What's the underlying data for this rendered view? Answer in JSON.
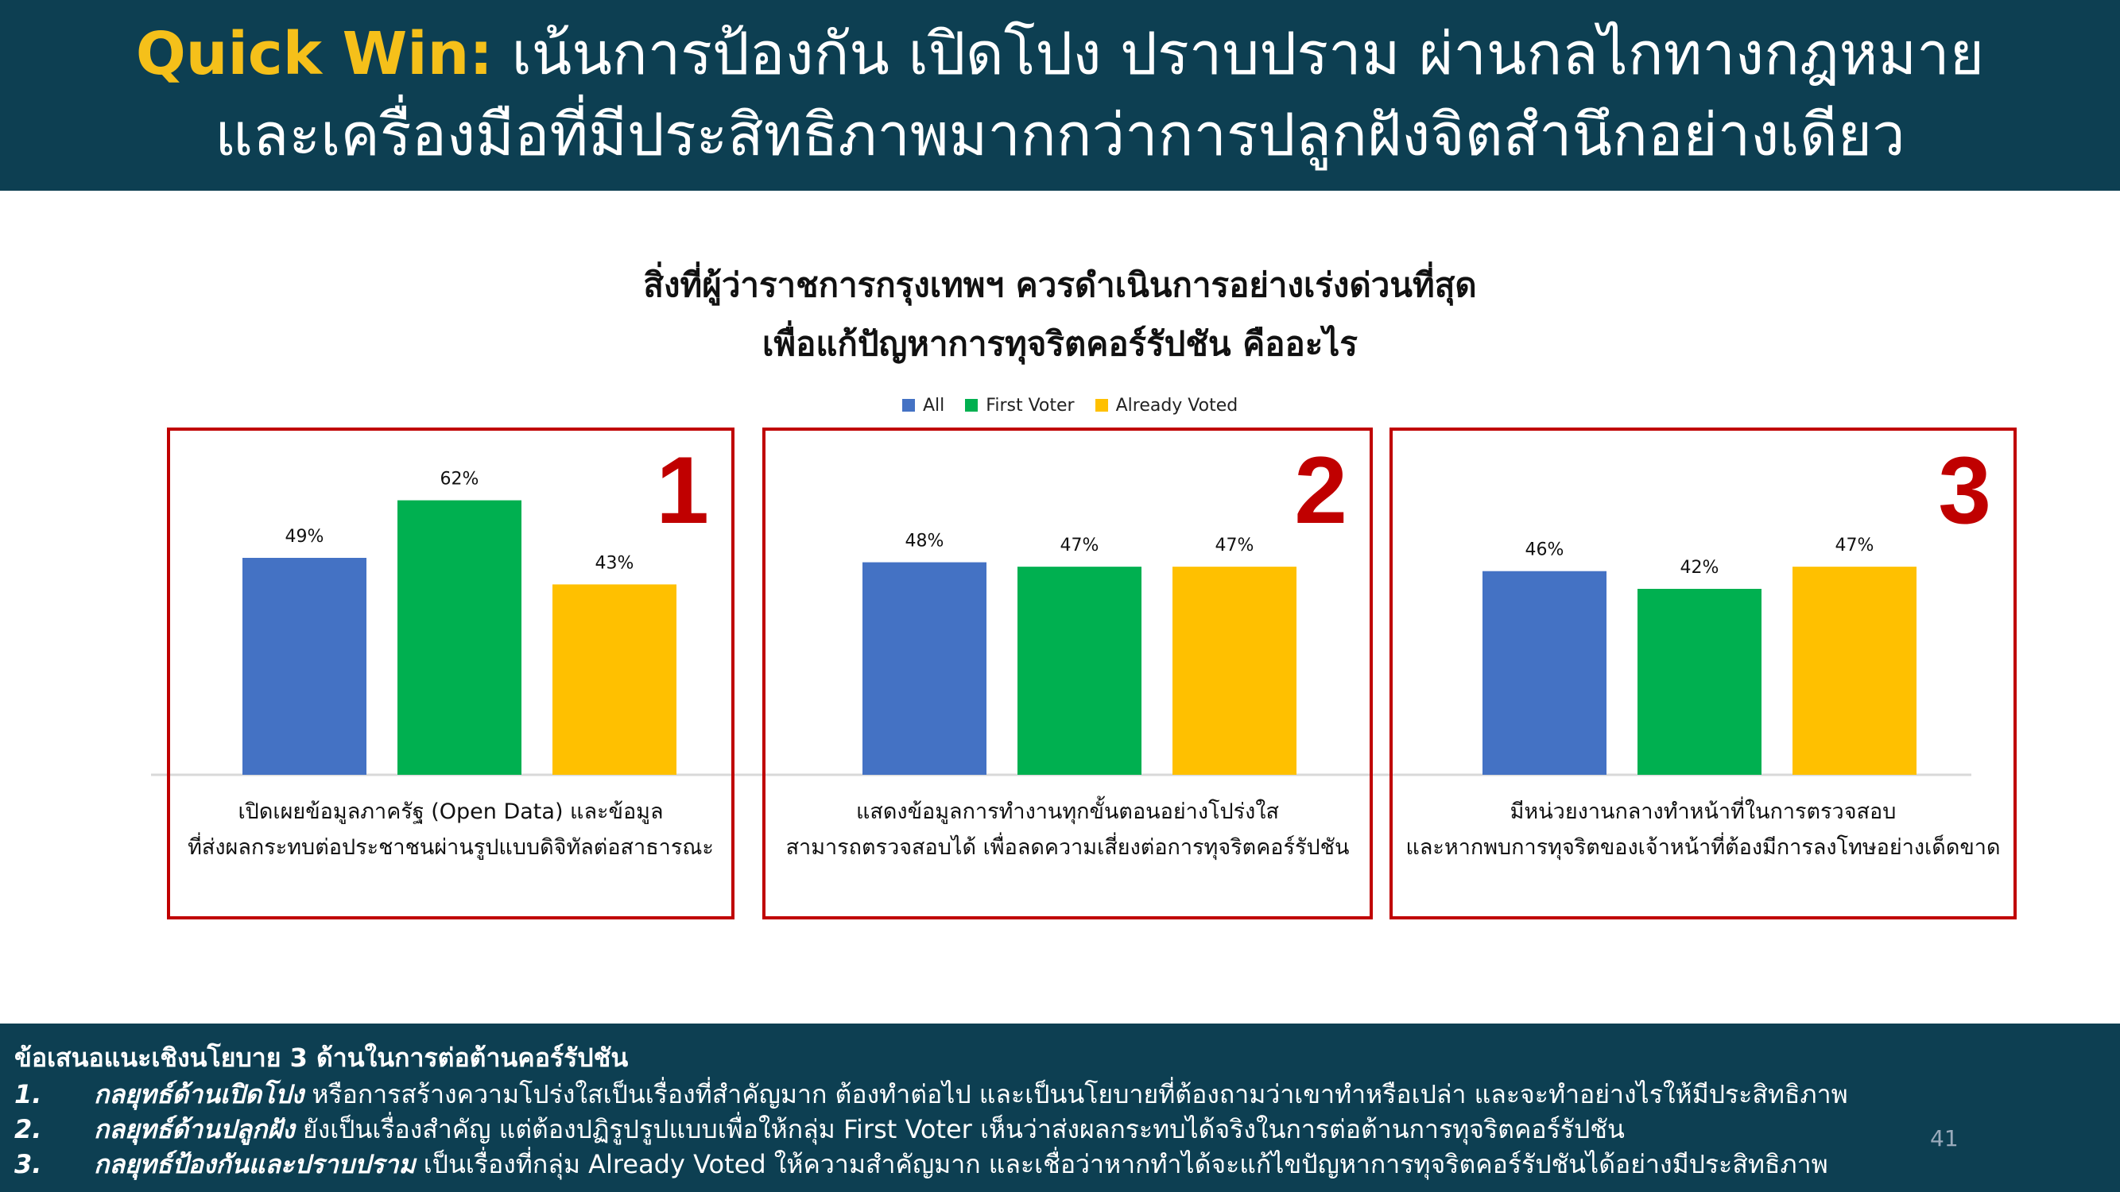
{
  "header": {
    "accent": "Quick Win:",
    "line1_rest": " เน้นการป้องกัน เปิดโปง ปราบปราม ผ่านกลไกทางกฎหมาย",
    "line2": "และเครื่องมือที่มีประสิทธิภาพมากกว่าการปลูกฝังจิตสำนึกอย่างเดียว"
  },
  "chart_data": {
    "type": "bar",
    "title_line1": "สิ่งที่ผู้ว่าราชการกรุงเทพฯ ควรดำเนินการอย่างเร่งด่วนที่สุด",
    "title_line2": "เพื่อแก้ปัญหาการทุจริตคอร์รัปชัน คืออะไร",
    "legend": [
      {
        "name": "All",
        "color": "#4472c4"
      },
      {
        "name": "First Voter",
        "color": "#00b050"
      },
      {
        "name": "Already Voted",
        "color": "#ffc000"
      }
    ],
    "legend_position": "top-center",
    "ylim": [
      0,
      70
    ],
    "grid": false,
    "value_format": "percent",
    "groups": [
      {
        "rank": "1",
        "label_line1": "เปิดเผยข้อมูลภาครัฐ (Open Data) และข้อมูล",
        "label_line2": "ที่ส่งผลกระทบต่อประชาชนผ่านรูปแบบดิจิทัลต่อสาธารณะ",
        "values": [
          49,
          62,
          43
        ]
      },
      {
        "rank": "2",
        "label_line1": "แสดงข้อมูลการทำงานทุกขั้นตอนอย่างโปร่งใส",
        "label_line2": "สามารถตรวจสอบได้ เพื่อลดความเสี่ยงต่อการทุจริตคอร์รัปชัน",
        "values": [
          48,
          47,
          47
        ]
      },
      {
        "rank": "3",
        "label_line1": "มีหน่วยงานกลางทำหน้าที่ในการตรวจสอบ",
        "label_line2": "และหากพบการทุจริตของเจ้าหน้าที่ต้องมีการลงโทษอย่างเด็ดขาด",
        "values": [
          46,
          42,
          47
        ]
      }
    ]
  },
  "footer": {
    "heading": "ข้อเสนอแนะเชิงนโยบาย 3 ด้านในการต่อต้านคอร์รัปชัน",
    "items": [
      {
        "num": "1.",
        "strategy": "กลยุทธ์ด้านเปิดโปง",
        "text": " หรือการสร้างความโปร่งใสเป็นเรื่องที่สำคัญมาก ต้องทำต่อไป และเป็นนโยบายที่ต้องถามว่าเขาทำหรือเปล่า และจะทำอย่างไรให้มีประสิทธิภาพ"
      },
      {
        "num": "2.",
        "strategy": "กลยุทธ์ด้านปลูกฝัง",
        "text": " ยังเป็นเรื่องสำคัญ แต่ต้องปฏิรูปรูปแบบเพื่อให้กลุ่ม First Voter เห็นว่าส่งผลกระทบได้จริงในการต่อต้านการทุจริตคอร์รัปชัน"
      },
      {
        "num": "3.",
        "strategy": "กลยุทธ์ป้องกันและปราบปราม",
        "text": " เป็นเรื่องที่กลุ่ม Already Voted ให้ความสำคัญมาก และเชื่อว่าหากทำได้จะแก้ไขปัญหาการทุจริตคอร์รัปชันได้อย่างมีประสิทธิภาพ"
      }
    ],
    "page_number": "41"
  }
}
